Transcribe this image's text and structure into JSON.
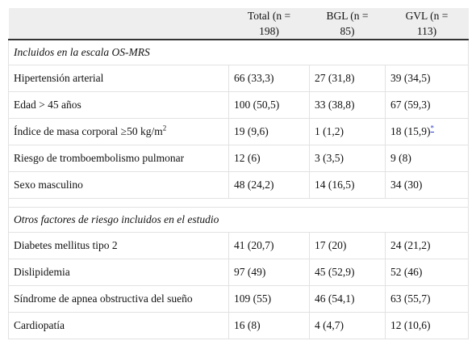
{
  "table": {
    "columns": [
      "Total (n = 198)",
      "BGL (n = 85)",
      "GVL (n = 113)"
    ],
    "sections": [
      {
        "title": "Incluidos en la escala OS-MRS",
        "rows": [
          {
            "label": "Hipertensión arterial",
            "cells": [
              "66 (33,3)",
              "27 (31,8)",
              "39 (34,5)"
            ]
          },
          {
            "label": "Edad > 45 años",
            "cells": [
              "100 (50,5)",
              "33 (38,8)",
              "67 (59,3)"
            ]
          },
          {
            "label": "Índice de masa corporal ≥50 kg/m",
            "label_sup": "2",
            "cells": [
              "19 (9,6)",
              "1 (1,2)",
              "18 (15,9)"
            ],
            "note": "*"
          },
          {
            "label": "Riesgo de tromboembolismo pulmonar",
            "cells": [
              "12 (6)",
              "3 (3,5)",
              "9 (8)"
            ]
          },
          {
            "label": "Sexo masculino",
            "cells": [
              "48 (24,2)",
              "14 (16,5)",
              "34 (30)"
            ]
          }
        ]
      },
      {
        "title": "Otros factores de riesgo incluidos en el estudio",
        "rows": [
          {
            "label": "Diabetes mellitus tipo 2",
            "cells": [
              "41 (20,7)",
              "17 (20)",
              "24 (21,2)"
            ]
          },
          {
            "label": "Dislipidemia",
            "cells": [
              "97 (49)",
              "45 (52,9)",
              "52 (46)"
            ]
          },
          {
            "label": "Síndrome de apnea obstructiva del sueño",
            "cells": [
              "109 (55)",
              "46 (54,1)",
              "63 (55,7)"
            ]
          },
          {
            "label": "Cardiopatía",
            "cells": [
              "16 (8)",
              "4 (4,7)",
              "12 (10,6)"
            ]
          }
        ]
      }
    ]
  }
}
